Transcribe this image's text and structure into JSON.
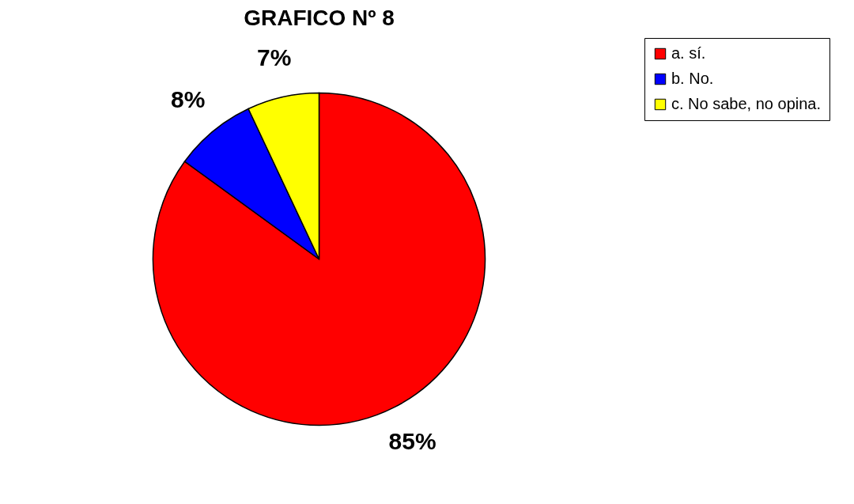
{
  "chart_data": {
    "type": "pie",
    "title": "GRAFICO Nº 8",
    "categories": [
      "a. sí.",
      "b. No.",
      "c. No sabe, no opina."
    ],
    "values": [
      85,
      8,
      7
    ],
    "colors": [
      "#ff0000",
      "#0000ff",
      "#ffff00"
    ],
    "value_labels": [
      "85%",
      "8%",
      "7%"
    ],
    "legend": "right"
  }
}
